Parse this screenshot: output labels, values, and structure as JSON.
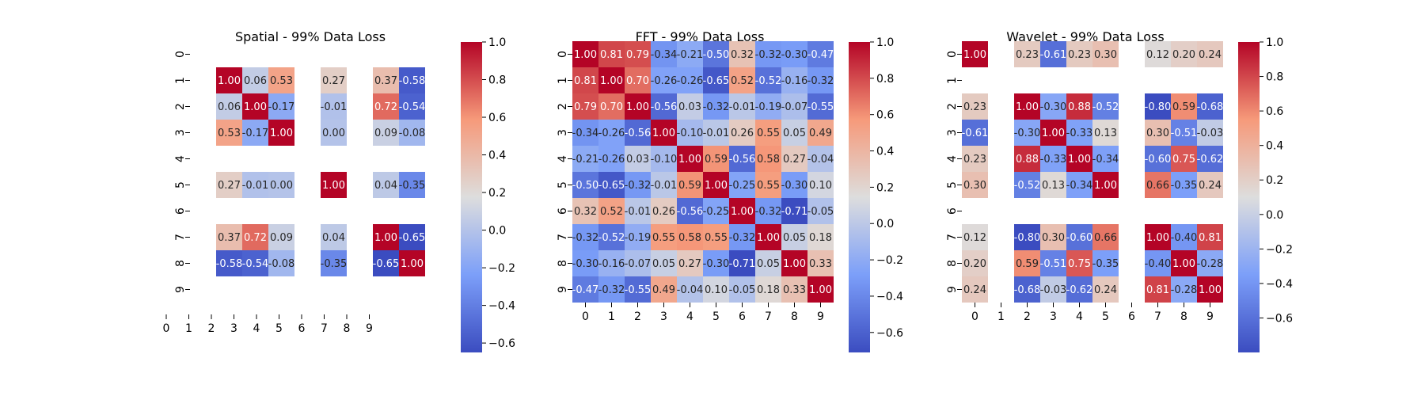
{
  "chart_data": [
    {
      "type": "heatmap",
      "title": "Spatial - 99% Data Loss",
      "x_tick_labels": [
        "0",
        "1",
        "2",
        "3",
        "4",
        "5",
        "6",
        "7",
        "8",
        "9"
      ],
      "y_tick_labels": [
        "0",
        "1",
        "2",
        "3",
        "4",
        "5",
        "6",
        "7",
        "8",
        "9"
      ],
      "x_ticks_centered": false,
      "vmin": -0.65,
      "vmax": 1.0,
      "colorbar_ticks": [
        "1.0",
        "0.8",
        "0.6",
        "0.4",
        "0.2",
        "0.0",
        "−0.2",
        "−0.4",
        "−0.6"
      ],
      "colorbar_tick_values": [
        1.0,
        0.8,
        0.6,
        0.4,
        0.2,
        0.0,
        -0.2,
        -0.4,
        -0.6
      ],
      "matrix": [
        [
          null,
          null,
          null,
          null,
          null,
          null,
          null,
          null,
          null,
          null
        ],
        [
          null,
          1.0,
          0.06,
          0.53,
          null,
          0.27,
          null,
          0.37,
          -0.58,
          null
        ],
        [
          null,
          0.06,
          1.0,
          -0.17,
          null,
          -0.01,
          null,
          0.72,
          -0.54,
          null
        ],
        [
          null,
          0.53,
          -0.17,
          1.0,
          null,
          0.0,
          null,
          0.09,
          -0.08,
          null
        ],
        [
          null,
          null,
          null,
          null,
          null,
          null,
          null,
          null,
          null,
          null
        ],
        [
          null,
          0.27,
          -0.01,
          0.0,
          null,
          1.0,
          null,
          0.04,
          -0.35,
          null
        ],
        [
          null,
          null,
          null,
          null,
          null,
          null,
          null,
          null,
          null,
          null
        ],
        [
          null,
          0.37,
          0.72,
          0.09,
          null,
          0.04,
          null,
          1.0,
          -0.65,
          null
        ],
        [
          null,
          -0.58,
          -0.54,
          -0.08,
          null,
          -0.35,
          null,
          -0.65,
          1.0,
          null
        ],
        [
          null,
          null,
          null,
          null,
          null,
          null,
          null,
          null,
          null,
          null
        ]
      ],
      "cell_labels": [
        [
          null,
          null,
          null,
          null,
          null,
          null,
          null,
          null,
          null,
          null
        ],
        [
          null,
          "1.00",
          "0.06",
          "0.53",
          null,
          "0.27",
          null,
          "0.37",
          "-0.58",
          null
        ],
        [
          null,
          "0.06",
          "1.00",
          "-0.17",
          null,
          "-0.01",
          null,
          "0.72",
          "-0.54",
          null
        ],
        [
          null,
          "0.53",
          "-0.17",
          "1.00",
          null,
          "0.00",
          null,
          "0.09",
          "-0.08",
          null
        ],
        [
          null,
          null,
          null,
          null,
          null,
          null,
          null,
          null,
          null,
          null
        ],
        [
          null,
          "0.27",
          "-0.01",
          "0.00",
          null,
          "1.00",
          null,
          "0.04",
          "-0.35",
          null
        ],
        [
          null,
          null,
          null,
          null,
          null,
          null,
          null,
          null,
          null,
          null
        ],
        [
          null,
          "0.37",
          "0.72",
          "0.09",
          null,
          "0.04",
          null,
          "1.00",
          "-0.65",
          null
        ],
        [
          null,
          "-0.58",
          "-0.54",
          "-0.08",
          null,
          "-0.35",
          null,
          "-0.65",
          "1.00",
          null
        ],
        [
          null,
          null,
          null,
          null,
          null,
          null,
          null,
          null,
          null,
          null
        ]
      ]
    },
    {
      "type": "heatmap",
      "title": "FFT - 99% Data Loss",
      "x_tick_labels": [
        "0",
        "1",
        "2",
        "3",
        "4",
        "5",
        "6",
        "7",
        "8",
        "9"
      ],
      "y_tick_labels": [
        "0",
        "1",
        "2",
        "3",
        "4",
        "5",
        "6",
        "7",
        "8",
        "9"
      ],
      "x_ticks_centered": true,
      "vmin": -0.71,
      "vmax": 1.0,
      "colorbar_ticks": [
        "1.0",
        "0.8",
        "0.6",
        "0.4",
        "0.2",
        "0.0",
        "−0.2",
        "−0.4",
        "−0.6"
      ],
      "colorbar_tick_values": [
        1.0,
        0.8,
        0.6,
        0.4,
        0.2,
        0.0,
        -0.2,
        -0.4,
        -0.6
      ],
      "matrix": [
        [
          1.0,
          0.81,
          0.79,
          -0.34,
          -0.21,
          -0.5,
          0.32,
          -0.32,
          -0.3,
          -0.47
        ],
        [
          0.81,
          1.0,
          0.7,
          -0.26,
          -0.26,
          -0.65,
          0.52,
          -0.52,
          -0.16,
          -0.32
        ],
        [
          0.79,
          0.7,
          1.0,
          -0.56,
          0.03,
          -0.32,
          -0.01,
          -0.19,
          -0.07,
          -0.55
        ],
        [
          -0.34,
          -0.26,
          -0.56,
          1.0,
          -0.1,
          -0.01,
          0.26,
          0.55,
          0.05,
          0.49
        ],
        [
          -0.21,
          -0.26,
          0.03,
          -0.1,
          1.0,
          0.59,
          -0.56,
          0.58,
          0.27,
          -0.04
        ],
        [
          -0.5,
          -0.65,
          -0.32,
          -0.01,
          0.59,
          1.0,
          -0.25,
          0.55,
          -0.3,
          0.1
        ],
        [
          0.32,
          0.52,
          -0.01,
          0.26,
          -0.56,
          -0.25,
          1.0,
          -0.32,
          -0.71,
          -0.05
        ],
        [
          -0.32,
          -0.52,
          -0.19,
          0.55,
          0.58,
          0.55,
          -0.32,
          1.0,
          0.05,
          0.18
        ],
        [
          -0.3,
          -0.16,
          -0.07,
          0.05,
          0.27,
          -0.3,
          -0.71,
          0.05,
          1.0,
          0.33
        ],
        [
          -0.47,
          -0.32,
          -0.55,
          0.49,
          -0.04,
          0.1,
          -0.05,
          0.18,
          0.33,
          1.0
        ]
      ],
      "cell_labels": [
        [
          "1.00",
          "0.81",
          "0.79",
          "-0.34",
          "-0.21",
          "-0.50",
          "0.32",
          "-0.32",
          "-0.30",
          "-0.47"
        ],
        [
          "0.81",
          "1.00",
          "0.70",
          "-0.26",
          "-0.26",
          "-0.65",
          "0.52",
          "-0.52",
          "-0.16",
          "-0.32"
        ],
        [
          "0.79",
          "0.70",
          "1.00",
          "-0.56",
          "0.03",
          "-0.32",
          "-0.01",
          "-0.19",
          "-0.07",
          "-0.55"
        ],
        [
          "-0.34",
          "-0.26",
          "-0.56",
          "1.00",
          "-0.10",
          "-0.01",
          "0.26",
          "0.55",
          "0.05",
          "0.49"
        ],
        [
          "-0.21",
          "-0.26",
          "0.03",
          "-0.10",
          "1.00",
          "0.59",
          "-0.56",
          "0.58",
          "0.27",
          "-0.04"
        ],
        [
          "-0.50",
          "-0.65",
          "-0.32",
          "-0.01",
          "0.59",
          "1.00",
          "-0.25",
          "0.55",
          "-0.30",
          "0.10"
        ],
        [
          "0.32",
          "0.52",
          "-0.01",
          "0.26",
          "-0.56",
          "-0.25",
          "1.00",
          "-0.32",
          "-0.71",
          "-0.05"
        ],
        [
          "-0.32",
          "-0.52",
          "-0.19",
          "0.55",
          "0.58",
          "0.55",
          "-0.32",
          "1.00",
          "0.05",
          "0.18"
        ],
        [
          "-0.30",
          "-0.16",
          "-0.07",
          "0.05",
          "0.27",
          "-0.30",
          "-0.71",
          "0.05",
          "1.00",
          "0.33"
        ],
        [
          "-0.47",
          "-0.32",
          "-0.55",
          "0.49",
          "-0.04",
          "0.10",
          "-0.05",
          "0.18",
          "0.33",
          "1.00"
        ]
      ]
    },
    {
      "type": "heatmap",
      "title": "Wavelet - 99% Data Loss",
      "x_tick_labels": [
        "0",
        "1",
        "2",
        "3",
        "4",
        "5",
        "6",
        "7",
        "8",
        "9"
      ],
      "y_tick_labels": [
        "0",
        "1",
        "2",
        "3",
        "4",
        "5",
        "6",
        "7",
        "8",
        "9"
      ],
      "x_ticks_centered": true,
      "vmin": -0.8,
      "vmax": 1.0,
      "colorbar_ticks": [
        "1.0",
        "0.8",
        "0.6",
        "0.4",
        "0.2",
        "0.0",
        "−0.2",
        "−0.4",
        "−0.6"
      ],
      "colorbar_tick_values": [
        1.0,
        0.8,
        0.6,
        0.4,
        0.2,
        0.0,
        -0.2,
        -0.4,
        -0.6
      ],
      "matrix": [
        [
          1.0,
          null,
          0.23,
          -0.61,
          0.23,
          0.3,
          null,
          0.12,
          0.2,
          0.24
        ],
        [
          null,
          null,
          null,
          null,
          null,
          null,
          null,
          null,
          null,
          null
        ],
        [
          0.23,
          null,
          1.0,
          -0.3,
          0.88,
          -0.52,
          null,
          -0.8,
          0.59,
          -0.68
        ],
        [
          -0.61,
          null,
          -0.3,
          1.0,
          -0.33,
          0.13,
          null,
          0.3,
          -0.51,
          -0.03
        ],
        [
          0.23,
          null,
          0.88,
          -0.33,
          1.0,
          -0.34,
          null,
          -0.6,
          0.75,
          -0.62
        ],
        [
          0.3,
          null,
          -0.52,
          0.13,
          -0.34,
          1.0,
          null,
          0.66,
          -0.35,
          0.24
        ],
        [
          null,
          null,
          null,
          null,
          null,
          null,
          null,
          null,
          null,
          null
        ],
        [
          0.12,
          null,
          -0.8,
          0.3,
          -0.6,
          0.66,
          null,
          1.0,
          -0.4,
          0.81
        ],
        [
          0.2,
          null,
          0.59,
          -0.51,
          0.75,
          -0.35,
          null,
          -0.4,
          1.0,
          -0.28
        ],
        [
          0.24,
          null,
          -0.68,
          -0.03,
          -0.62,
          0.24,
          null,
          0.81,
          -0.28,
          1.0
        ]
      ],
      "cell_labels": [
        [
          "1.00",
          null,
          "0.23",
          "-0.61",
          "0.23",
          "0.30",
          null,
          "0.12",
          "0.20",
          "0.24"
        ],
        [
          null,
          null,
          null,
          null,
          null,
          null,
          null,
          null,
          null,
          null
        ],
        [
          "0.23",
          null,
          "1.00",
          "-0.30",
          "0.88",
          "-0.52",
          null,
          "-0.80",
          "0.59",
          "-0.68"
        ],
        [
          "-0.61",
          null,
          "-0.30",
          "1.00",
          "-0.33",
          "0.13",
          null,
          "0.30",
          "-0.51",
          "-0.03"
        ],
        [
          "0.23",
          null,
          "0.88",
          "-0.33",
          "1.00",
          "-0.34",
          null,
          "-0.60",
          "0.75",
          "-0.62"
        ],
        [
          "0.30",
          null,
          "-0.52",
          "0.13",
          "-0.34",
          "1.00",
          null,
          "0.66",
          "-0.35",
          "0.24"
        ],
        [
          null,
          null,
          null,
          null,
          null,
          null,
          null,
          null,
          null,
          null
        ],
        [
          "0.12",
          null,
          "-0.80",
          "0.30",
          "-0.60",
          "0.66",
          null,
          "1.00",
          "-0.40",
          "0.81"
        ],
        [
          "0.20",
          null,
          "0.59",
          "-0.51",
          "0.75",
          "-0.35",
          null,
          "-0.40",
          "1.00",
          "-0.28"
        ],
        [
          "0.24",
          null,
          "-0.68",
          "-0.03",
          "-0.62",
          "0.24",
          null,
          "0.81",
          "-0.28",
          "1.00"
        ]
      ]
    }
  ],
  "colormap": "coolwarm"
}
